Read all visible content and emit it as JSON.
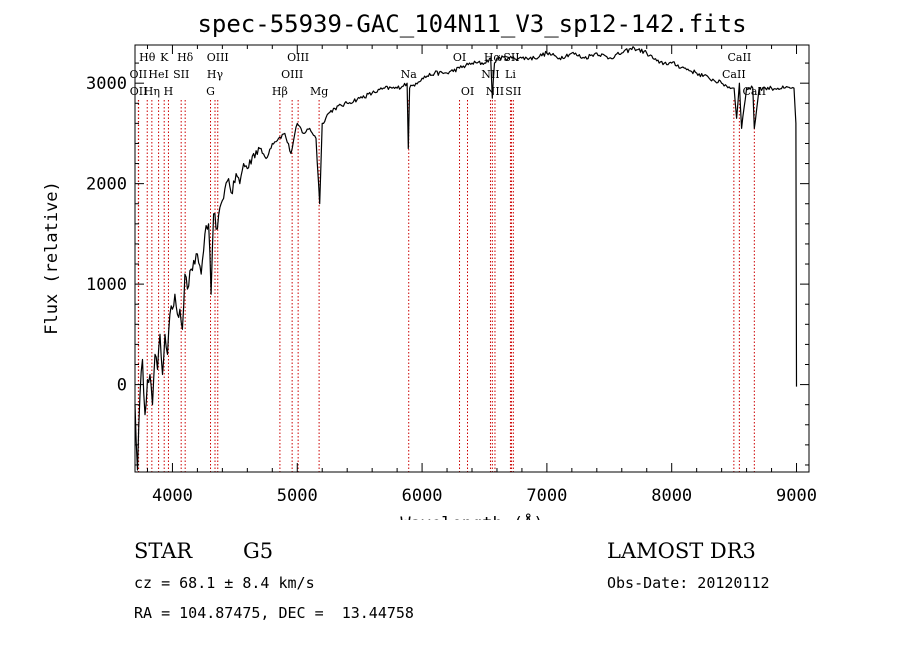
{
  "chart_data": {
    "type": "line",
    "title": "spec-55939-GAC_104N11_V3_sp12-142.fits",
    "xlabel": "Wavelength (Å)",
    "ylabel": "Flux (relative)",
    "xlim": [
      3700,
      9100
    ],
    "ylim": [
      -870,
      3380
    ],
    "xticks": [
      4000,
      5000,
      6000,
      7000,
      8000,
      9000
    ],
    "xtick_labels": [
      "4000",
      "5000",
      "6000",
      "7000",
      "8000",
      "9000"
    ],
    "yticks": [
      0,
      1000,
      2000,
      3000
    ],
    "ytick_labels": [
      "0",
      "1000",
      "2000",
      "3000"
    ],
    "grid": false,
    "series": [
      {
        "name": "flux",
        "x": [
          3700,
          3720,
          3740,
          3760,
          3780,
          3800,
          3820,
          3840,
          3860,
          3880,
          3900,
          3920,
          3940,
          3960,
          3980,
          4000,
          4020,
          4040,
          4060,
          4080,
          4100,
          4120,
          4150,
          4180,
          4200,
          4230,
          4260,
          4290,
          4310,
          4330,
          4360,
          4390,
          4420,
          4450,
          4480,
          4510,
          4540,
          4570,
          4600,
          4650,
          4700,
          4750,
          4800,
          4850,
          4900,
          4950,
          5000,
          5050,
          5100,
          5150,
          5180,
          5200,
          5250,
          5300,
          5400,
          5500,
          5600,
          5700,
          5800,
          5880,
          5890,
          5900,
          5950,
          6000,
          6100,
          6200,
          6300,
          6400,
          6500,
          6550,
          6563,
          6580,
          6600,
          6700,
          6800,
          6900,
          7000,
          7100,
          7200,
          7300,
          7400,
          7500,
          7600,
          7700,
          7800,
          7900,
          8000,
          8100,
          8200,
          8300,
          8400,
          8480,
          8500,
          8520,
          8542,
          8560,
          8600,
          8650,
          8662,
          8700,
          8750,
          8800,
          8850,
          8900,
          8950,
          8980,
          8995,
          9000
        ],
        "y": [
          -200,
          -850,
          -100,
          250,
          -300,
          50,
          100,
          -200,
          300,
          150,
          500,
          100,
          500,
          300,
          700,
          750,
          900,
          700,
          750,
          550,
          1100,
          950,
          1150,
          1200,
          1300,
          1100,
          1500,
          1600,
          900,
          1700,
          1550,
          1800,
          1950,
          2050,
          1900,
          2100,
          2000,
          2200,
          2150,
          2300,
          2350,
          2250,
          2400,
          2450,
          2500,
          2300,
          2600,
          2500,
          2550,
          2450,
          1800,
          2600,
          2700,
          2750,
          2800,
          2850,
          2900,
          2950,
          2950,
          3000,
          2350,
          2950,
          3000,
          3050,
          3100,
          3100,
          3150,
          3200,
          3200,
          3250,
          2850,
          3200,
          3250,
          3250,
          3250,
          3250,
          3300,
          3250,
          3300,
          3250,
          3300,
          3250,
          3300,
          3350,
          3300,
          3200,
          3200,
          3150,
          3100,
          3050,
          3000,
          2950,
          2950,
          2650,
          3000,
          2550,
          2950,
          2950,
          2550,
          2950,
          2950,
          2950,
          2950,
          2950,
          2950,
          2950,
          2600,
          -20
        ]
      }
    ],
    "lines": [
      {
        "name": "Hθ",
        "x": 3798,
        "row": 1
      },
      {
        "name": "OII",
        "x": 3727,
        "row": 2
      },
      {
        "name": "OII",
        "x": 3729,
        "row": 3
      },
      {
        "name": "Hη",
        "x": 3835,
        "row": 3
      },
      {
        "name": "K",
        "x": 3934,
        "row": 1
      },
      {
        "name": "HeI",
        "x": 3889,
        "row": 2
      },
      {
        "name": "H",
        "x": 3968,
        "row": 3
      },
      {
        "name": "SII",
        "x": 4070,
        "row": 2
      },
      {
        "name": "Hδ",
        "x": 4102,
        "row": 1
      },
      {
        "name": "OIII",
        "x": 4363,
        "row": 1
      },
      {
        "name": "Hγ",
        "x": 4341,
        "row": 2
      },
      {
        "name": "G",
        "x": 4305,
        "row": 3
      },
      {
        "name": "Hβ",
        "x": 4861,
        "row": 3
      },
      {
        "name": "OIII",
        "x": 5007,
        "row": 1
      },
      {
        "name": "OIII",
        "x": 4959,
        "row": 2
      },
      {
        "name": "Mg",
        "x": 5175,
        "row": 3
      },
      {
        "name": "Na",
        "x": 5893,
        "row": 2
      },
      {
        "name": "OI",
        "x": 6300,
        "row": 1
      },
      {
        "name": "OI",
        "x": 6364,
        "row": 3
      },
      {
        "name": "Hα",
        "x": 6563,
        "row": 1
      },
      {
        "name": "NII",
        "x": 6548,
        "row": 2
      },
      {
        "name": "NII",
        "x": 6584,
        "row": 3
      },
      {
        "name": "SII",
        "x": 6716,
        "row": 1
      },
      {
        "name": "Li",
        "x": 6708,
        "row": 2
      },
      {
        "name": "SII",
        "x": 6731,
        "row": 3
      },
      {
        "name": "CaII",
        "x": 8542,
        "row": 1
      },
      {
        "name": "CaII",
        "x": 8498,
        "row": 2
      },
      {
        "name": "CaII",
        "x": 8662,
        "row": 3
      }
    ]
  },
  "info": {
    "object_class": "STAR",
    "subclass": "G5",
    "survey": "LAMOST DR3",
    "redshift": "cz = 68.1 ± 8.4 km/s",
    "obs_date": "Obs-Date: 20120112",
    "coords": "RA = 104.87475, DEC =  13.44758"
  },
  "colors": {
    "axis": "#000000",
    "spectrum": "#000000",
    "line_marker": "#cc0000"
  }
}
